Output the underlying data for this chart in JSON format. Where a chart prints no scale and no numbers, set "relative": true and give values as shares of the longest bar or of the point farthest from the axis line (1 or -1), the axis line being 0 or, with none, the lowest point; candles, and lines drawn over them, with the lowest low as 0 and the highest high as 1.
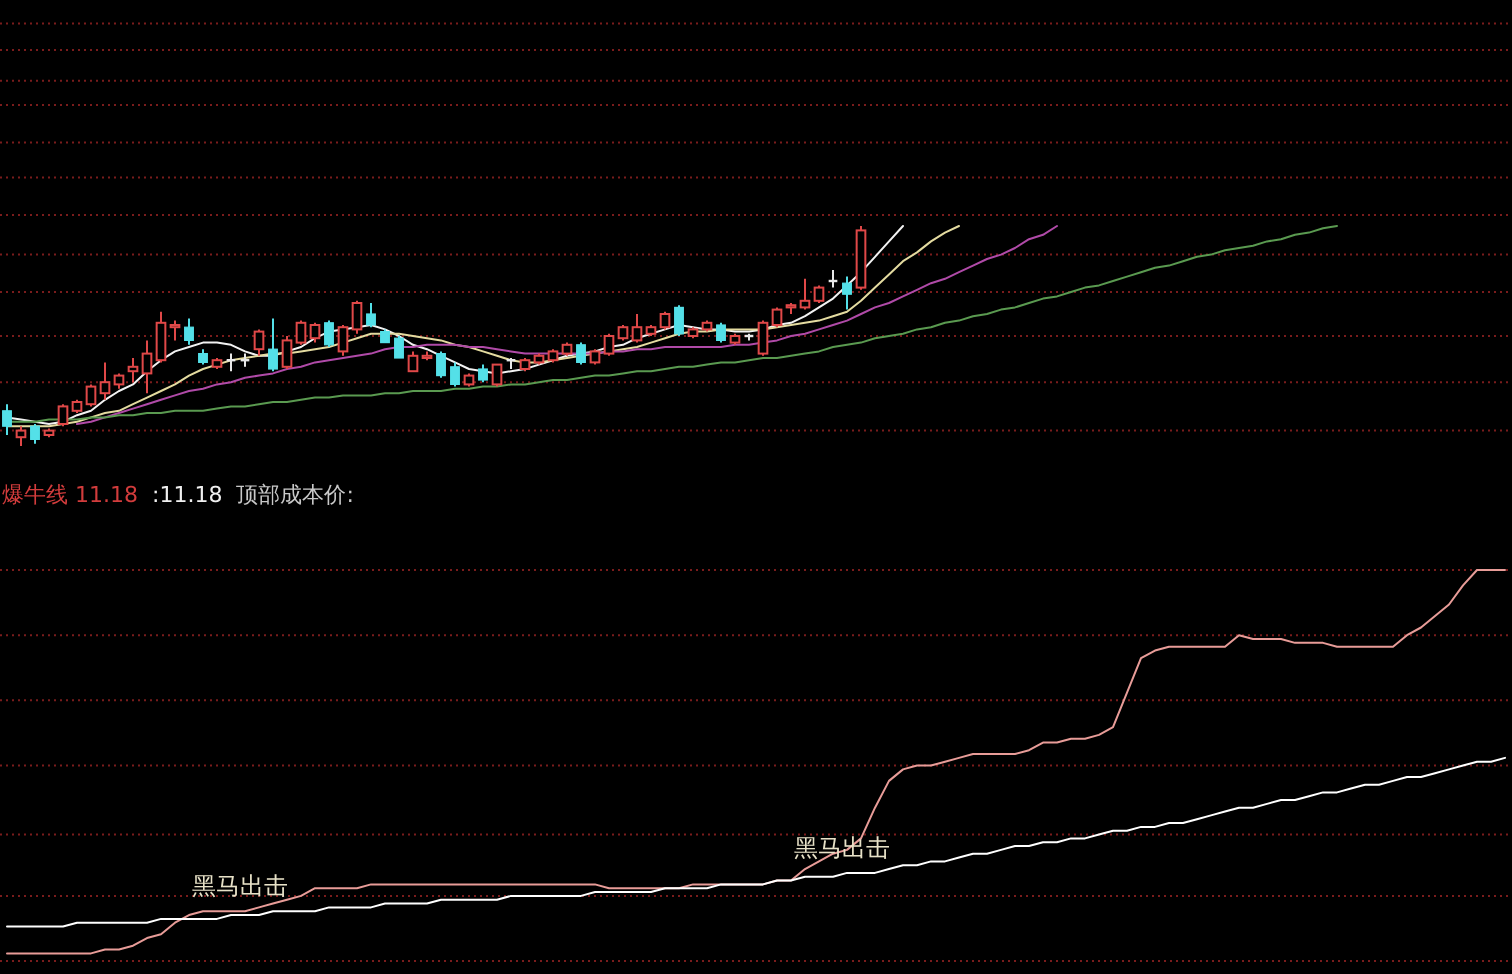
{
  "chart_data": [
    {
      "type": "candlestick",
      "relative": true,
      "ref_lines": [
        {
          "axis": "y",
          "value": 1.92,
          "color": "#7a1c1c",
          "line_style": "dotted"
        },
        {
          "axis": "y",
          "value": 1.8,
          "color": "#7a1c1c",
          "line_style": "dotted"
        },
        {
          "axis": "y",
          "value": 1.66,
          "color": "#7a1c1c",
          "line_style": "dotted"
        },
        {
          "axis": "y",
          "value": 1.55,
          "color": "#7a1c1c",
          "line_style": "dotted"
        },
        {
          "axis": "y",
          "value": 1.38,
          "color": "#7a1c1c",
          "line_style": "dotted"
        },
        {
          "axis": "y",
          "value": 1.22,
          "color": "#7a1c1c",
          "line_style": "dotted"
        },
        {
          "axis": "y",
          "value": 1.05,
          "color": "#7a1c1c",
          "line_style": "dotted"
        },
        {
          "axis": "y",
          "value": 0.87,
          "color": "#7a1c1c",
          "line_style": "dotted"
        },
        {
          "axis": "y",
          "value": 0.7,
          "color": "#7a1c1c",
          "line_style": "dotted"
        },
        {
          "axis": "y",
          "value": 0.5,
          "color": "#7a1c1c",
          "line_style": "dotted"
        },
        {
          "axis": "y",
          "value": 0.29,
          "color": "#7a1c1c",
          "line_style": "dotted"
        },
        {
          "axis": "y",
          "value": 0.07,
          "color": "#7a1c1c",
          "line_style": "dotted"
        }
      ],
      "categories": [
        null,
        null,
        null,
        null,
        null,
        null,
        null,
        null,
        null,
        null,
        null,
        null,
        null,
        null,
        null,
        null,
        null,
        null,
        null,
        null,
        null,
        null,
        null,
        null,
        null,
        null,
        null,
        null,
        null,
        null,
        null,
        null,
        null,
        null,
        null,
        null,
        null,
        null,
        null,
        null,
        null,
        null,
        null,
        null,
        null,
        null,
        null,
        null,
        null,
        null,
        null,
        null,
        null,
        null,
        null,
        null,
        null,
        null,
        null,
        null,
        null,
        null,
        null,
        null,
        null,
        null,
        null,
        null,
        null,
        null,
        null,
        null,
        null,
        null,
        null,
        null,
        null,
        null,
        null,
        null,
        null,
        null,
        null,
        null,
        null,
        null,
        null,
        null,
        null,
        null,
        null,
        null,
        null,
        null,
        null,
        null,
        null,
        null,
        null,
        null,
        null,
        null,
        null,
        null,
        null,
        null,
        null,
        null
      ],
      "ohlc": [
        [
          0.16,
          0.19,
          0.05,
          0.09
        ],
        [
          0.04,
          0.09,
          0.0,
          0.07
        ],
        [
          0.09,
          0.1,
          0.01,
          0.03
        ],
        [
          0.05,
          0.08,
          0.04,
          0.07
        ],
        [
          0.1,
          0.19,
          0.09,
          0.18
        ],
        [
          0.16,
          0.21,
          0.15,
          0.2
        ],
        [
          0.19,
          0.28,
          0.18,
          0.27
        ],
        [
          0.24,
          0.38,
          0.21,
          0.29
        ],
        [
          0.28,
          0.33,
          0.26,
          0.32
        ],
        [
          0.34,
          0.4,
          0.29,
          0.36
        ],
        [
          0.33,
          0.48,
          0.24,
          0.42
        ],
        [
          0.39,
          0.61,
          0.38,
          0.56
        ],
        [
          0.54,
          0.57,
          0.48,
          0.55
        ],
        [
          0.54,
          0.58,
          0.46,
          0.48
        ],
        [
          0.42,
          0.44,
          0.37,
          0.38
        ],
        [
          0.36,
          0.4,
          0.35,
          0.39
        ],
        [
          0.39,
          0.42,
          0.34,
          0.39
        ],
        [
          0.39,
          0.42,
          0.36,
          0.39
        ],
        [
          0.44,
          0.53,
          0.41,
          0.52
        ],
        [
          0.44,
          0.58,
          0.34,
          0.35
        ],
        [
          0.36,
          0.5,
          0.35,
          0.48
        ],
        [
          0.47,
          0.57,
          0.46,
          0.56
        ],
        [
          0.49,
          0.56,
          0.47,
          0.55
        ],
        [
          0.56,
          0.57,
          0.45,
          0.46
        ],
        [
          0.43,
          0.55,
          0.41,
          0.54
        ],
        [
          0.53,
          0.66,
          0.51,
          0.65
        ],
        [
          0.6,
          0.65,
          0.54,
          0.55
        ],
        [
          0.52,
          0.53,
          0.47,
          0.47
        ],
        [
          0.49,
          0.5,
          0.4,
          0.4
        ],
        [
          0.34,
          0.43,
          0.34,
          0.41
        ],
        [
          0.4,
          0.43,
          0.39,
          0.41
        ],
        [
          0.42,
          0.43,
          0.31,
          0.32
        ],
        [
          0.36,
          0.38,
          0.27,
          0.28
        ],
        [
          0.28,
          0.33,
          0.27,
          0.32
        ],
        [
          0.35,
          0.37,
          0.29,
          0.3
        ],
        [
          0.28,
          0.37,
          0.27,
          0.37
        ],
        [
          0.39,
          0.4,
          0.35,
          0.39
        ],
        [
          0.35,
          0.4,
          0.34,
          0.39
        ],
        [
          0.38,
          0.42,
          0.37,
          0.41
        ],
        [
          0.39,
          0.44,
          0.38,
          0.43
        ],
        [
          0.42,
          0.47,
          0.41,
          0.46
        ],
        [
          0.46,
          0.47,
          0.37,
          0.38
        ],
        [
          0.38,
          0.44,
          0.37,
          0.43
        ],
        [
          0.42,
          0.51,
          0.41,
          0.5
        ],
        [
          0.49,
          0.55,
          0.48,
          0.54
        ],
        [
          0.48,
          0.6,
          0.47,
          0.54
        ],
        [
          0.51,
          0.55,
          0.5,
          0.54
        ],
        [
          0.54,
          0.61,
          0.53,
          0.6
        ],
        [
          0.63,
          0.64,
          0.5,
          0.51
        ],
        [
          0.5,
          0.54,
          0.49,
          0.53
        ],
        [
          0.53,
          0.57,
          0.52,
          0.56
        ],
        [
          0.55,
          0.56,
          0.47,
          0.48
        ],
        [
          0.47,
          0.51,
          0.46,
          0.5
        ],
        [
          0.5,
          0.51,
          0.48,
          0.5
        ],
        [
          0.42,
          0.57,
          0.41,
          0.56
        ],
        [
          0.55,
          0.63,
          0.54,
          0.62
        ],
        [
          0.63,
          0.65,
          0.6,
          0.64
        ],
        [
          0.63,
          0.76,
          0.62,
          0.66
        ],
        [
          0.66,
          0.73,
          0.65,
          0.72
        ],
        [
          0.75,
          0.8,
          0.72,
          0.75
        ],
        [
          0.74,
          0.77,
          0.62,
          0.69
        ],
        [
          0.72,
          1.0,
          0.71,
          0.98
        ],
        null,
        null,
        null,
        null,
        null,
        null,
        null,
        null,
        null,
        null,
        null,
        null,
        null,
        null,
        null,
        null,
        null,
        null,
        null,
        null,
        null,
        null,
        null,
        null,
        null,
        null,
        null,
        null,
        null,
        null,
        null,
        null,
        null,
        null,
        null,
        null,
        null,
        null,
        null,
        null,
        null,
        null,
        null,
        null,
        null,
        null
      ],
      "colors": [
        "#54e0e8",
        "#e04848",
        "#54e0e8",
        "#e04848",
        "#e04848",
        "#e04848",
        "#e04848",
        "#e04848",
        "#e04848",
        "#e04848",
        "#e04848",
        "#e04848",
        "#e04848",
        "#54e0e8",
        "#54e0e8",
        "#e04848",
        "#e8e8e8",
        "#e8e8e8",
        "#e04848",
        "#54e0e8",
        "#e04848",
        "#e04848",
        "#e04848",
        "#54e0e8",
        "#e04848",
        "#e04848",
        "#54e0e8",
        "#54e0e8",
        "#54e0e8",
        "#e04848",
        "#e04848",
        "#54e0e8",
        "#54e0e8",
        "#e04848",
        "#54e0e8",
        "#e04848",
        "#e8e8e8",
        "#e04848",
        "#e04848",
        "#e04848",
        "#e04848",
        "#54e0e8",
        "#e04848",
        "#e04848",
        "#e04848",
        "#e04848",
        "#e04848",
        "#e04848",
        "#54e0e8",
        "#e04848",
        "#e04848",
        "#54e0e8",
        "#e04848",
        "#e8e8e8",
        "#e04848",
        "#e04848",
        "#e04848",
        "#e04848",
        "#e04848",
        "#e8e8e8",
        "#54e0e8",
        "#e04848",
        null,
        null,
        null,
        null,
        null,
        null,
        null,
        null,
        null,
        null,
        null,
        null,
        null,
        null,
        null,
        null,
        null,
        null,
        null,
        null,
        null,
        null,
        null,
        null,
        null,
        null,
        null,
        null,
        null,
        null,
        null,
        null,
        null,
        null,
        null,
        null,
        null,
        null,
        null,
        null,
        null,
        null,
        null,
        null,
        null,
        null
      ],
      "series": [
        {
          "type": "line",
          "color": "#f2f2f2",
          "values": [
            0.13,
            0.12,
            0.11,
            0.1,
            0.11,
            0.14,
            0.16,
            0.21,
            0.25,
            0.28,
            0.34,
            0.39,
            0.43,
            0.45,
            0.47,
            0.47,
            0.46,
            0.43,
            0.41,
            0.41,
            0.43,
            0.45,
            0.49,
            0.52,
            0.53,
            0.54,
            0.55,
            0.53,
            0.5,
            0.46,
            0.44,
            0.41,
            0.38,
            0.35,
            0.34,
            0.33,
            0.34,
            0.35,
            0.37,
            0.39,
            0.41,
            0.42,
            0.43,
            0.45,
            0.46,
            0.49,
            0.51,
            0.53,
            0.55,
            0.54,
            0.53,
            0.53,
            0.52,
            0.52,
            0.53,
            0.55,
            0.56,
            0.59,
            0.63,
            0.67,
            0.73,
            0.79,
            0.86,
            0.93,
            1.0,
            null,
            null,
            null,
            null,
            null,
            null,
            null,
            null,
            null,
            null,
            null,
            null,
            null,
            null,
            null,
            null,
            null,
            null,
            null,
            null,
            null,
            null,
            null,
            null,
            null,
            null,
            null,
            null,
            null,
            null,
            null,
            null,
            null,
            null,
            null,
            null,
            null,
            null,
            null,
            null,
            null,
            null,
            null
          ]
        },
        {
          "type": "line",
          "color": "#e4dba0",
          "values": [
            0.09,
            0.09,
            0.09,
            0.09,
            0.1,
            0.11,
            0.13,
            0.15,
            0.16,
            0.19,
            0.22,
            0.25,
            0.28,
            0.32,
            0.35,
            0.37,
            0.39,
            0.4,
            0.41,
            0.42,
            0.42,
            0.43,
            0.44,
            0.45,
            0.47,
            0.49,
            0.51,
            0.51,
            0.51,
            0.5,
            0.49,
            0.48,
            0.46,
            0.45,
            0.43,
            0.41,
            0.39,
            0.38,
            0.38,
            0.39,
            0.4,
            0.41,
            0.42,
            0.43,
            0.44,
            0.45,
            0.47,
            0.49,
            0.51,
            0.52,
            0.52,
            0.53,
            0.53,
            0.53,
            0.53,
            0.54,
            0.55,
            0.56,
            0.57,
            0.59,
            0.61,
            0.66,
            0.72,
            0.78,
            0.84,
            0.88,
            0.93,
            0.97,
            1.0,
            null,
            null,
            null,
            null,
            null,
            null,
            null,
            null,
            null,
            null,
            null,
            null,
            null,
            null,
            null,
            null,
            null,
            null,
            null,
            null,
            null,
            null,
            null,
            null,
            null,
            null,
            null,
            null,
            null,
            null,
            null,
            null,
            null,
            null,
            null,
            null,
            null,
            null,
            null
          ]
        },
        {
          "type": "line",
          "color": "#b04aa8",
          "values": [
            null,
            null,
            null,
            null,
            null,
            0.1,
            0.11,
            0.13,
            0.15,
            0.17,
            0.19,
            0.21,
            0.23,
            0.25,
            0.26,
            0.28,
            0.29,
            0.31,
            0.32,
            0.33,
            0.35,
            0.36,
            0.38,
            0.39,
            0.4,
            0.41,
            0.42,
            0.44,
            0.45,
            0.45,
            0.46,
            0.46,
            0.46,
            0.45,
            0.45,
            0.44,
            0.43,
            0.42,
            0.42,
            0.42,
            0.42,
            0.42,
            0.42,
            0.43,
            0.43,
            0.44,
            0.44,
            0.45,
            0.45,
            0.45,
            0.45,
            0.45,
            0.46,
            0.46,
            0.47,
            0.48,
            0.5,
            0.51,
            0.53,
            0.55,
            0.57,
            0.6,
            0.63,
            0.65,
            0.68,
            0.71,
            0.74,
            0.76,
            0.79,
            0.82,
            0.85,
            0.87,
            0.9,
            0.94,
            0.96,
            1.0,
            null,
            null,
            null,
            null,
            null,
            null,
            null,
            null,
            null,
            null,
            null,
            null,
            null,
            null,
            null,
            null,
            null,
            null,
            null,
            null,
            null,
            null,
            null,
            null,
            null,
            null,
            null,
            null,
            null,
            null,
            null,
            null
          ]
        },
        {
          "type": "line",
          "color": "#5a9a50",
          "values": [
            0.11,
            0.11,
            0.11,
            0.12,
            0.12,
            0.12,
            0.13,
            0.13,
            0.14,
            0.14,
            0.15,
            0.15,
            0.16,
            0.16,
            0.16,
            0.17,
            0.18,
            0.18,
            0.19,
            0.2,
            0.2,
            0.21,
            0.22,
            0.22,
            0.23,
            0.23,
            0.23,
            0.24,
            0.24,
            0.25,
            0.25,
            0.25,
            0.26,
            0.26,
            0.27,
            0.27,
            0.28,
            0.28,
            0.29,
            0.3,
            0.3,
            0.31,
            0.32,
            0.32,
            0.33,
            0.34,
            0.34,
            0.35,
            0.36,
            0.36,
            0.37,
            0.38,
            0.38,
            0.39,
            0.4,
            0.4,
            0.41,
            0.42,
            0.43,
            0.45,
            0.46,
            0.47,
            0.49,
            0.5,
            0.51,
            0.53,
            0.54,
            0.56,
            0.57,
            0.59,
            0.6,
            0.62,
            0.63,
            0.65,
            0.67,
            0.68,
            0.7,
            0.72,
            0.73,
            0.75,
            0.77,
            0.79,
            0.81,
            0.82,
            0.84,
            0.86,
            0.87,
            0.89,
            0.9,
            0.91,
            0.93,
            0.94,
            0.96,
            0.97,
            0.99,
            1.0,
            null,
            null,
            null,
            null,
            null,
            null,
            null,
            null,
            null,
            null,
            null,
            null
          ]
        }
      ]
    },
    {
      "type": "line",
      "relative": true,
      "ref_lines": [
        {
          "axis": "y",
          "value": 1.0,
          "color": "#7a1c1c",
          "line_style": "dotted"
        },
        {
          "axis": "y",
          "value": 0.83,
          "color": "#7a1c1c",
          "line_style": "dotted"
        },
        {
          "axis": "y",
          "value": 0.66,
          "color": "#7a1c1c",
          "line_style": "dotted"
        },
        {
          "axis": "y",
          "value": 0.49,
          "color": "#7a1c1c",
          "line_style": "dotted"
        },
        {
          "axis": "y",
          "value": 0.31,
          "color": "#7a1c1c",
          "line_style": "dotted"
        },
        {
          "axis": "y",
          "value": 0.15,
          "color": "#7a1c1c",
          "line_style": "dotted"
        },
        {
          "axis": "y",
          "value": -0.02,
          "color": "#7a1c1c",
          "line_style": "dotted"
        }
      ],
      "categories": [
        null,
        null,
        null,
        null,
        null,
        null,
        null,
        null,
        null,
        null,
        null,
        null,
        null,
        null,
        null,
        null,
        null,
        null,
        null,
        null,
        null,
        null,
        null,
        null,
        null,
        null,
        null,
        null,
        null,
        null,
        null,
        null,
        null,
        null,
        null,
        null,
        null,
        null,
        null,
        null,
        null,
        null,
        null,
        null,
        null,
        null,
        null,
        null,
        null,
        null,
        null,
        null,
        null,
        null,
        null,
        null,
        null,
        null,
        null,
        null,
        null,
        null,
        null,
        null,
        null,
        null,
        null,
        null,
        null,
        null,
        null,
        null,
        null,
        null,
        null,
        null,
        null,
        null,
        null,
        null,
        null,
        null,
        null,
        null,
        null,
        null,
        null,
        null,
        null,
        null,
        null,
        null,
        null,
        null,
        null,
        null,
        null,
        null,
        null,
        null,
        null,
        null,
        null,
        null,
        null,
        null,
        null,
        null
      ],
      "annotations": [
        "爆牛线 11.18",
        ":11.18",
        "顶部成本价:",
        "黑马出击",
        "黑马出击"
      ],
      "series": [
        {
          "color": "#e89c98",
          "values": [
            0,
            0,
            0,
            0,
            0,
            0,
            0,
            0.01,
            0.01,
            0.02,
            0.04,
            0.05,
            0.08,
            0.1,
            0.11,
            0.11,
            0.11,
            0.11,
            0.12,
            0.13,
            0.14,
            0.15,
            0.17,
            0.17,
            0.17,
            0.17,
            0.18,
            0.18,
            0.18,
            0.18,
            0.18,
            0.18,
            0.18,
            0.18,
            0.18,
            0.18,
            0.18,
            0.18,
            0.18,
            0.18,
            0.18,
            0.18,
            0.18,
            0.17,
            0.17,
            0.17,
            0.17,
            0.17,
            0.17,
            0.18,
            0.18,
            0.18,
            0.18,
            0.18,
            0.18,
            0.19,
            0.19,
            0.22,
            0.24,
            0.26,
            0.27,
            0.3,
            0.38,
            0.45,
            0.48,
            0.49,
            0.49,
            0.5,
            0.51,
            0.52,
            0.52,
            0.52,
            0.52,
            0.53,
            0.55,
            0.55,
            0.56,
            0.56,
            0.57,
            0.59,
            0.68,
            0.77,
            0.79,
            0.8,
            0.8,
            0.8,
            0.8,
            0.8,
            0.83,
            0.82,
            0.82,
            0.82,
            0.81,
            0.81,
            0.81,
            0.8,
            0.8,
            0.8,
            0.8,
            0.8,
            0.83,
            0.85,
            0.88,
            0.91,
            0.96,
            1.0,
            1.0,
            1.0
          ]
        },
        {
          "color": "#ffffff",
          "values": [
            0.07,
            0.07,
            0.07,
            0.07,
            0.07,
            0.08,
            0.08,
            0.08,
            0.08,
            0.08,
            0.08,
            0.09,
            0.09,
            0.09,
            0.09,
            0.09,
            0.1,
            0.1,
            0.1,
            0.11,
            0.11,
            0.11,
            0.11,
            0.12,
            0.12,
            0.12,
            0.12,
            0.13,
            0.13,
            0.13,
            0.13,
            0.14,
            0.14,
            0.14,
            0.14,
            0.14,
            0.15,
            0.15,
            0.15,
            0.15,
            0.15,
            0.15,
            0.16,
            0.16,
            0.16,
            0.16,
            0.16,
            0.17,
            0.17,
            0.17,
            0.17,
            0.18,
            0.18,
            0.18,
            0.18,
            0.19,
            0.19,
            0.2,
            0.2,
            0.2,
            0.21,
            0.21,
            0.21,
            0.22,
            0.23,
            0.23,
            0.24,
            0.24,
            0.25,
            0.26,
            0.26,
            0.27,
            0.28,
            0.28,
            0.29,
            0.29,
            0.3,
            0.3,
            0.31,
            0.32,
            0.32,
            0.33,
            0.33,
            0.34,
            0.34,
            0.35,
            0.36,
            0.37,
            0.38,
            0.38,
            0.39,
            0.4,
            0.4,
            0.41,
            0.42,
            0.42,
            0.43,
            0.44,
            0.44,
            0.45,
            0.46,
            0.46,
            0.47,
            0.48,
            0.49,
            0.5,
            0.5,
            0.51
          ]
        }
      ]
    }
  ]
}
